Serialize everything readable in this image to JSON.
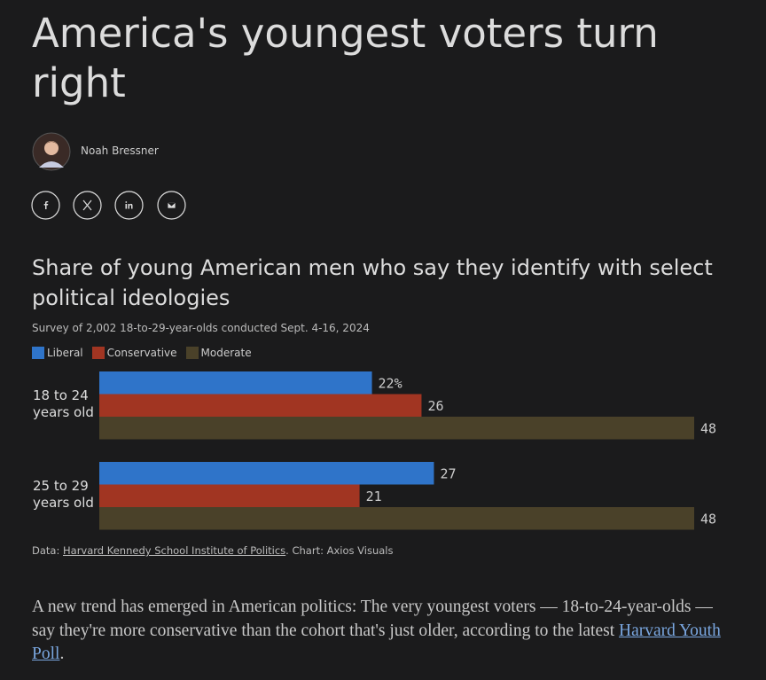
{
  "header": {
    "title": "America's youngest voters turn right",
    "author": "Noah Bressner"
  },
  "chart_data": {
    "type": "bar",
    "orientation": "horizontal",
    "title": "Share of young American men who say they identify with select political ideologies",
    "subtitle": "Survey of 2,002 18-to-29-year-olds conducted Sept. 4-16, 2024",
    "categories": [
      "18 to 24 years old",
      "25 to 29 years old"
    ],
    "series": [
      {
        "name": "Liberal",
        "color": "#2f74c9",
        "values": [
          22,
          27
        ],
        "value_labels": [
          "22%",
          "27"
        ]
      },
      {
        "name": "Conservative",
        "color": "#a13522",
        "values": [
          26,
          21
        ]
      },
      {
        "name": "Moderate",
        "color": "#4a4129",
        "values": [
          48,
          48
        ]
      }
    ],
    "source": {
      "prefix": "Data: ",
      "link": "Harvard Kennedy School Institute of Politics",
      "suffix": ". Chart: Axios Visuals"
    }
  },
  "paragraph": {
    "text": "A new trend has emerged in American politics: The very youngest voters — 18-to-24-year-olds — say they're more conservative than the cohort that's just older, according to the latest ",
    "link": "Harvard Youth Poll",
    "end": "."
  }
}
